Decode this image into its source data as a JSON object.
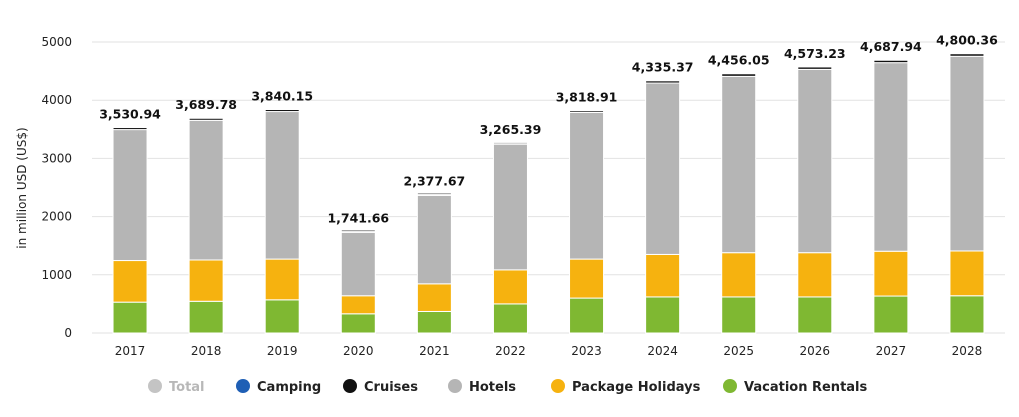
{
  "chart_data": {
    "type": "bar",
    "stacked": true,
    "ylabel": "in million USD (US$)",
    "ylim": [
      0,
      5000
    ],
    "yticks": [
      0,
      1000,
      2000,
      3000,
      4000,
      5000
    ],
    "categories": [
      "2017",
      "2018",
      "2019",
      "2020",
      "2021",
      "2022",
      "2023",
      "2024",
      "2025",
      "2026",
      "2027",
      "2028"
    ],
    "totals": [
      "3,530.94",
      "3,689.78",
      "3,840.15",
      "1,741.66",
      "2,377.67",
      "3,265.39",
      "3,818.91",
      "4,335.37",
      "4,456.05",
      "4,573.23",
      "4,687.94",
      "4,800.36"
    ],
    "series": [
      {
        "name": "Vacation Rentals",
        "color": "#7fb832",
        "values": [
          530,
          545,
          570,
          330,
          370,
          500,
          600,
          620,
          620,
          620,
          635,
          640
        ]
      },
      {
        "name": "Package Holidays",
        "color": "#f6b20f",
        "values": [
          715,
          710,
          700,
          310,
          475,
          585,
          670,
          730,
          760,
          760,
          770,
          770
        ]
      },
      {
        "name": "Hotels",
        "color": "#b5b5b5",
        "values": [
          2250,
          2400,
          2535,
          1090,
          1520,
          2160,
          2520,
          2945,
          3030,
          3150,
          3240,
          3345
        ]
      },
      {
        "name": "Cruises",
        "color": "#111111",
        "values": [
          35,
          35,
          35,
          12,
          13,
          20,
          29,
          40,
          46,
          43,
          43,
          45
        ]
      },
      {
        "name": "Camping",
        "color": "#1f5fb5",
        "values": [
          0.5,
          0.5,
          0.5,
          0.3,
          0.3,
          0.4,
          0.5,
          0.5,
          0.5,
          0.5,
          0.5,
          0.5
        ]
      }
    ],
    "legend": [
      {
        "name": "Total",
        "color": "#c4c4c4",
        "inactive": true
      },
      {
        "name": "Camping",
        "color": "#1f5fb5",
        "inactive": false
      },
      {
        "name": "Cruises",
        "color": "#111111",
        "inactive": false
      },
      {
        "name": "Hotels",
        "color": "#b5b5b5",
        "inactive": false
      },
      {
        "name": "Package Holidays",
        "color": "#f6b20f",
        "inactive": false
      },
      {
        "name": "Vacation Rentals",
        "color": "#7fb832",
        "inactive": false
      }
    ],
    "legend_position": "bottom",
    "grid": true
  }
}
